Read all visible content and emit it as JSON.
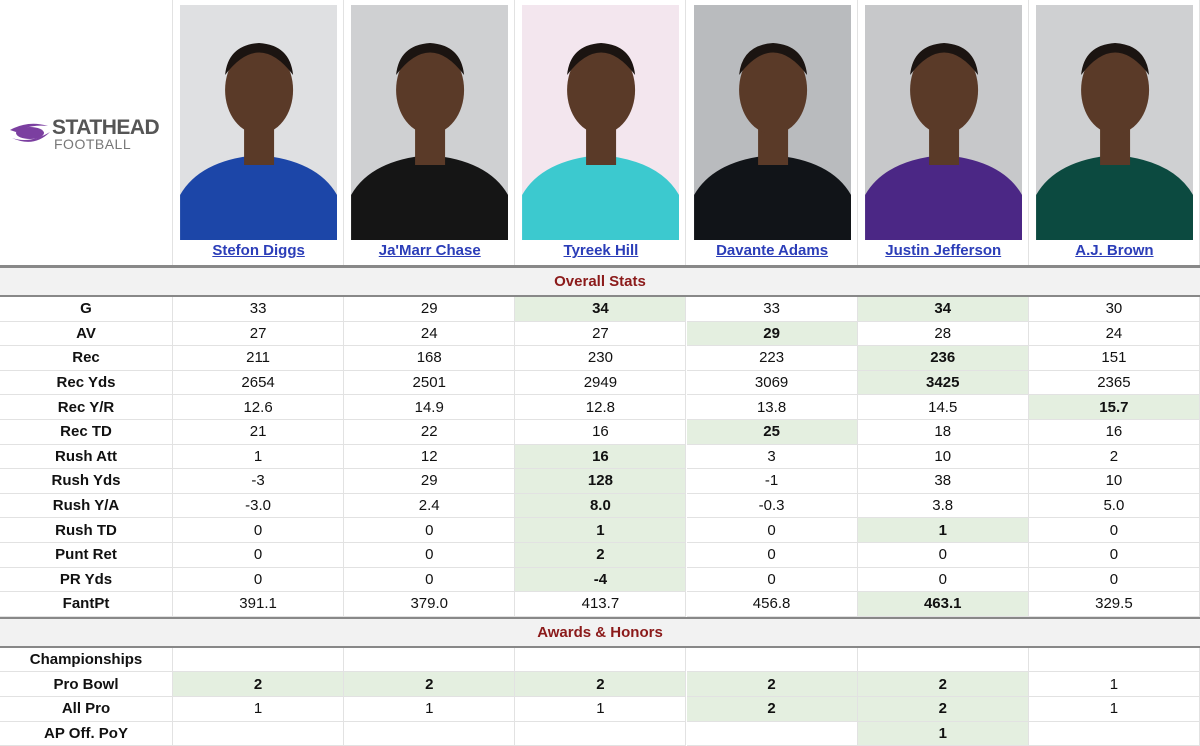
{
  "logo": {
    "brand": "STATHEAD",
    "sub": "FOOTBALL"
  },
  "players": [
    "Stefon Diggs",
    "Ja'Marr Chase",
    "Tyreek Hill",
    "Davante Adams",
    "Justin Jefferson",
    "A.J. Brown"
  ],
  "sections": [
    {
      "title": "Overall Stats",
      "rows": [
        {
          "label": "G",
          "cells": [
            "33",
            "29",
            "34",
            "33",
            "34",
            "30"
          ],
          "leaders": [
            2,
            4
          ]
        },
        {
          "label": "AV",
          "cells": [
            "27",
            "24",
            "27",
            "29",
            "28",
            "24"
          ],
          "leaders": [
            3
          ]
        },
        {
          "label": "Rec",
          "cells": [
            "211",
            "168",
            "230",
            "223",
            "236",
            "151"
          ],
          "leaders": [
            4
          ]
        },
        {
          "label": "Rec Yds",
          "cells": [
            "2654",
            "2501",
            "2949",
            "3069",
            "3425",
            "2365"
          ],
          "leaders": [
            4
          ]
        },
        {
          "label": "Rec Y/R",
          "cells": [
            "12.6",
            "14.9",
            "12.8",
            "13.8",
            "14.5",
            "15.7"
          ],
          "leaders": [
            5
          ]
        },
        {
          "label": "Rec TD",
          "cells": [
            "21",
            "22",
            "16",
            "25",
            "18",
            "16"
          ],
          "leaders": [
            3
          ]
        },
        {
          "label": "Rush Att",
          "cells": [
            "1",
            "12",
            "16",
            "3",
            "10",
            "2"
          ],
          "leaders": [
            2
          ]
        },
        {
          "label": "Rush Yds",
          "cells": [
            "-3",
            "29",
            "128",
            "-1",
            "38",
            "10"
          ],
          "leaders": [
            2
          ]
        },
        {
          "label": "Rush Y/A",
          "cells": [
            "-3.0",
            "2.4",
            "8.0",
            "-0.3",
            "3.8",
            "5.0"
          ],
          "leaders": [
            2
          ]
        },
        {
          "label": "Rush TD",
          "cells": [
            "0",
            "0",
            "1",
            "0",
            "1",
            "0"
          ],
          "leaders": [
            2,
            4
          ]
        },
        {
          "label": "Punt Ret",
          "cells": [
            "0",
            "0",
            "2",
            "0",
            "0",
            "0"
          ],
          "leaders": [
            2
          ]
        },
        {
          "label": "PR Yds",
          "cells": [
            "0",
            "0",
            "-4",
            "0",
            "0",
            "0"
          ],
          "leaders": [
            2
          ]
        },
        {
          "label": "FantPt",
          "cells": [
            "391.1",
            "379.0",
            "413.7",
            "456.8",
            "463.1",
            "329.5"
          ],
          "leaders": [
            4
          ]
        }
      ]
    },
    {
      "title": "Awards & Honors",
      "rows": [
        {
          "label": "Championships",
          "cells": [
            null,
            null,
            null,
            null,
            null,
            null
          ],
          "leaders": []
        },
        {
          "label": "Pro Bowl",
          "cells": [
            "2",
            "2",
            "2",
            "2",
            "2",
            "1"
          ],
          "leaders": [
            0,
            1,
            2,
            3,
            4
          ]
        },
        {
          "label": "All Pro",
          "cells": [
            "1",
            "1",
            "1",
            "2",
            "2",
            "1"
          ],
          "leaders": [
            3,
            4
          ]
        },
        {
          "label": "AP Off. PoY",
          "cells": [
            null,
            null,
            null,
            null,
            "1",
            null
          ],
          "leaders": [
            4
          ]
        }
      ]
    }
  ]
}
